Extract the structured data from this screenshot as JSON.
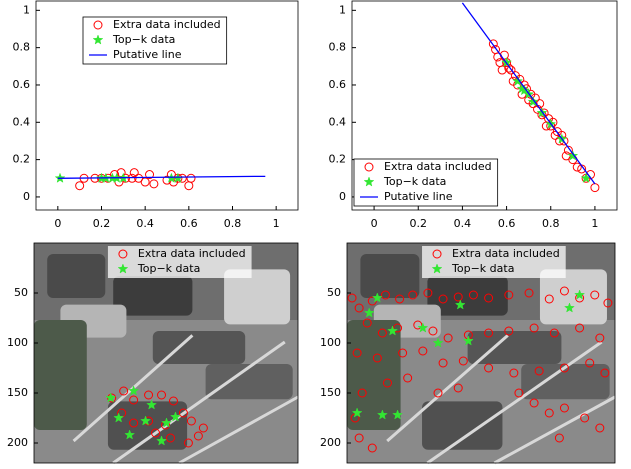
{
  "chart_data": [
    {
      "type": "scatter",
      "legend": "upper left",
      "xlim": [
        -0.1,
        1.1
      ],
      "ylim": [
        -0.07,
        1.05
      ],
      "xticks": [
        0,
        0.2,
        0.4,
        0.6,
        0.8,
        1
      ],
      "yticks": [
        0,
        0.2,
        0.4,
        0.6,
        0.8,
        1
      ],
      "series": [
        {
          "name": "Extra data included",
          "marker": "circle",
          "color": "#ff0000",
          "x": [
            0.1,
            0.12,
            0.17,
            0.2,
            0.23,
            0.26,
            0.28,
            0.29,
            0.31,
            0.34,
            0.35,
            0.37,
            0.4,
            0.42,
            0.44,
            0.5,
            0.52,
            0.53,
            0.55,
            0.57,
            0.6,
            0.61
          ],
          "values": [
            0.06,
            0.1,
            0.1,
            0.1,
            0.1,
            0.12,
            0.08,
            0.13,
            0.1,
            0.1,
            0.13,
            0.1,
            0.08,
            0.12,
            0.07,
            0.09,
            0.12,
            0.08,
            0.1,
            0.1,
            0.06,
            0.1
          ]
        },
        {
          "name": "Top−k data",
          "marker": "star",
          "color": "#33e633",
          "x": [
            0.01,
            0.2,
            0.22,
            0.25,
            0.27,
            0.3,
            0.52,
            0.55
          ],
          "values": [
            0.1,
            0.1,
            0.1,
            0.1,
            0.1,
            0.1,
            0.1,
            0.1
          ]
        },
        {
          "name": "Putative line",
          "marker": "line",
          "color": "#0000ff",
          "x": [
            0,
            0.9,
            0.95
          ],
          "values": [
            0.1,
            0.11,
            0.11
          ]
        }
      ]
    },
    {
      "type": "scatter",
      "legend": "lower left",
      "xlim": [
        -0.1,
        1.1
      ],
      "ylim": [
        -0.07,
        1.05
      ],
      "xticks": [
        0,
        0.2,
        0.4,
        0.6,
        0.8,
        1
      ],
      "yticks": [
        0,
        0.2,
        0.4,
        0.6,
        0.8,
        1
      ],
      "series": [
        {
          "name": "Extra data included",
          "marker": "circle",
          "color": "#ff0000",
          "x": [
            0.54,
            0.55,
            0.56,
            0.57,
            0.58,
            0.59,
            0.6,
            0.61,
            0.62,
            0.63,
            0.64,
            0.65,
            0.66,
            0.67,
            0.68,
            0.69,
            0.7,
            0.71,
            0.72,
            0.73,
            0.74,
            0.75,
            0.76,
            0.77,
            0.78,
            0.79,
            0.8,
            0.81,
            0.82,
            0.83,
            0.84,
            0.85,
            0.86,
            0.87,
            0.88,
            0.9,
            0.92,
            0.94,
            0.96,
            0.98,
            1.0
          ],
          "values": [
            0.82,
            0.79,
            0.75,
            0.72,
            0.68,
            0.76,
            0.72,
            0.69,
            0.68,
            0.62,
            0.65,
            0.6,
            0.63,
            0.55,
            0.6,
            0.58,
            0.52,
            0.55,
            0.5,
            0.53,
            0.47,
            0.5,
            0.44,
            0.45,
            0.38,
            0.42,
            0.38,
            0.4,
            0.33,
            0.35,
            0.3,
            0.33,
            0.3,
            0.22,
            0.25,
            0.2,
            0.16,
            0.15,
            0.1,
            0.12,
            0.05
          ]
        },
        {
          "name": "Top−k data",
          "marker": "star",
          "color": "#33e633",
          "x": [
            0.6,
            0.65,
            0.67,
            0.68,
            0.7,
            0.72,
            0.76,
            0.8,
            0.85,
            0.9,
            0.96
          ],
          "values": [
            0.72,
            0.62,
            0.58,
            0.57,
            0.55,
            0.51,
            0.45,
            0.39,
            0.31,
            0.22,
            0.1
          ]
        },
        {
          "name": "Putative line",
          "marker": "line",
          "color": "#0000ff",
          "x": [
            0.4,
            1.0
          ],
          "values": [
            1.04,
            0.07
          ]
        }
      ]
    },
    {
      "type": "scatter",
      "image": true,
      "legend": "upper center",
      "xlim": [
        0,
        265
      ],
      "ylim": [
        220,
        0
      ],
      "yticks": [
        50,
        100,
        150,
        200
      ],
      "series": [
        {
          "name": "Extra data included",
          "marker": "circle",
          "color": "#ff0000",
          "x": [
            78,
            90,
            100,
            115,
            128,
            140,
            150,
            158,
            170,
            132,
            115,
            100,
            88,
            137,
            122,
            165,
            155
          ],
          "values": [
            155,
            148,
            157,
            152,
            152,
            158,
            170,
            178,
            185,
            182,
            178,
            180,
            170,
            195,
            190,
            193,
            200
          ]
        },
        {
          "name": "Top−k data",
          "marker": "star",
          "color": "#33e633",
          "x": [
            77,
            100,
            85,
            96,
            118,
            133,
            142,
            128,
            112
          ],
          "values": [
            155,
            148,
            175,
            192,
            162,
            180,
            174,
            198,
            178
          ]
        }
      ]
    },
    {
      "type": "scatter",
      "image": true,
      "legend": "upper center",
      "xlim": [
        0,
        265
      ],
      "ylim": [
        220,
        0
      ],
      "yticks": [
        50,
        100,
        150,
        200
      ],
      "series": [
        {
          "name": "Extra data included",
          "marker": "circle",
          "color": "#ff0000",
          "x": [
            5,
            12,
            25,
            38,
            52,
            65,
            80,
            95,
            110,
            125,
            140,
            160,
            180,
            200,
            215,
            230,
            245,
            258,
            20,
            35,
            50,
            70,
            85,
            100,
            120,
            140,
            160,
            185,
            205,
            230,
            250,
            10,
            30,
            55,
            75,
            95,
            115,
            140,
            165,
            190,
            215,
            240,
            255,
            15,
            8,
            12,
            25,
            40,
            60,
            170,
            185,
            200,
            215,
            235,
            250,
            210,
            90,
            110
          ],
          "values": [
            55,
            65,
            58,
            52,
            56,
            52,
            50,
            56,
            54,
            52,
            55,
            52,
            50,
            56,
            48,
            55,
            52,
            60,
            80,
            90,
            85,
            82,
            88,
            95,
            92,
            90,
            88,
            85,
            90,
            85,
            95,
            110,
            115,
            110,
            108,
            120,
            118,
            125,
            130,
            128,
            125,
            120,
            130,
            150,
            175,
            195,
            205,
            140,
            135,
            150,
            160,
            170,
            165,
            175,
            185,
            195,
            150,
            145
          ]
        },
        {
          "name": "Top−k data",
          "marker": "star",
          "color": "#33e633",
          "x": [
            30,
            22,
            45,
            75,
            112,
            90,
            120,
            230,
            220,
            10,
            35,
            50
          ],
          "values": [
            55,
            70,
            88,
            85,
            62,
            100,
            98,
            52,
            65,
            170,
            172,
            172
          ]
        }
      ]
    }
  ]
}
